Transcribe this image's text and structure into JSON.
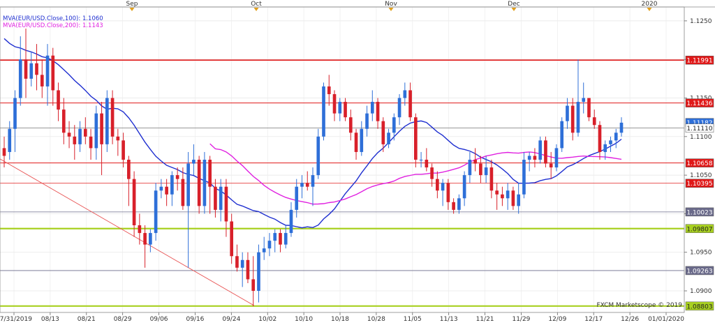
{
  "chart_data": {
    "type": "candlestick",
    "title": "",
    "instrument": "EUR/USD",
    "legend": [
      {
        "label": "MVA(EUR/USD.Close,100)",
        "value": "1.1060",
        "color": "#1f2fd0"
      },
      {
        "label": "MVA(EUR/USD.Close,200)",
        "value": "1.1143",
        "color": "#e020e0"
      }
    ],
    "credit": "FXCM Marketscope © 2019",
    "colors": {
      "up": "#2e6fd8",
      "down": "#d8202a"
    },
    "ylim": [
      1.0872,
      1.1268
    ],
    "y_ticks": [
      "1.1250",
      "1.1200",
      "1.1150",
      "1.1100",
      "1.1050",
      "1.1000",
      "1.0950",
      "1.0900"
    ],
    "x_dates": [
      "07/31/2019",
      "08/13",
      "08/21",
      "08/29",
      "09/06",
      "09/16",
      "09/24",
      "10/02",
      "10/10",
      "10/18",
      "10/28",
      "11/05",
      "11/13",
      "11/21",
      "11/29",
      "12/09",
      "12/17",
      "12/26",
      "01/01/2020"
    ],
    "months": [
      "Sep",
      "Oct",
      "Nov",
      "Dec",
      "2020"
    ],
    "levels": [
      {
        "price": 1.11991,
        "label": "1.11991",
        "color": "#e01818",
        "width": 1.6,
        "tag_bg": "#e01818",
        "tag_fg": "#ffffff"
      },
      {
        "price": 1.11436,
        "label": "1.11436",
        "color": "#e01818",
        "width": 1.0,
        "tag_bg": "#e01818",
        "tag_fg": "#ffffff"
      },
      {
        "price": 1.11182,
        "label": "1.11182",
        "color": "none",
        "width": 0,
        "tag_bg": "#2e6fd8",
        "tag_fg": "#ffffff"
      },
      {
        "price": 1.1111,
        "label": "1.11110",
        "color": "#777777",
        "width": 0.8,
        "tag_bg": "#ffffff",
        "tag_fg": "#222222"
      },
      {
        "price": 1.10658,
        "label": "1.10658",
        "color": "#e01818",
        "width": 1.0,
        "tag_bg": "#e01818",
        "tag_fg": "#ffffff"
      },
      {
        "price": 1.10395,
        "label": "1.10395",
        "color": "#e01818",
        "width": 0.8,
        "tag_bg": "#e01818",
        "tag_fg": "#ffffff"
      },
      {
        "price": 1.10023,
        "label": "1.10023",
        "color": "#6a6a8a",
        "width": 0.8,
        "tag_bg": "#6a6a8a",
        "tag_fg": "#ffffff"
      },
      {
        "price": 1.09807,
        "label": "1.09807",
        "color": "#a8d020",
        "width": 2.2,
        "tag_bg": "#a8d020",
        "tag_fg": "#222222"
      },
      {
        "price": 1.09263,
        "label": "1.09263",
        "color": "#6a6a8a",
        "width": 0.8,
        "tag_bg": "#6a6a8a",
        "tag_fg": "#ffffff"
      },
      {
        "price": 1.08803,
        "label": "1.08803",
        "color": "#a8d020",
        "width": 2.2,
        "tag_bg": "#a8d020",
        "tag_fg": "#222222"
      }
    ],
    "trendline": {
      "from": {
        "date": "07/31/2019",
        "price": 1.1071
      },
      "to": {
        "date": "10/01",
        "price": 1.0881
      },
      "color": "#e85050"
    },
    "candles": [
      [
        1.1085,
        1.11,
        1.106,
        1.1075
      ],
      [
        1.108,
        1.112,
        1.107,
        1.111
      ],
      [
        1.111,
        1.116,
        1.108,
        1.115
      ],
      [
        1.115,
        1.123,
        1.114,
        1.12
      ],
      [
        1.12,
        1.124,
        1.115,
        1.1175
      ],
      [
        1.1175,
        1.121,
        1.1165,
        1.1195
      ],
      [
        1.1195,
        1.122,
        1.116,
        1.118
      ],
      [
        1.118,
        1.12,
        1.115,
        1.1165
      ],
      [
        1.1165,
        1.122,
        1.114,
        1.1205
      ],
      [
        1.1205,
        1.1215,
        1.114,
        1.116
      ],
      [
        1.116,
        1.117,
        1.112,
        1.1135
      ],
      [
        1.1135,
        1.115,
        1.109,
        1.1105
      ],
      [
        1.1105,
        1.112,
        1.1085,
        1.11
      ],
      [
        1.11,
        1.1115,
        1.107,
        1.109
      ],
      [
        1.109,
        1.112,
        1.108,
        1.111
      ],
      [
        1.111,
        1.1125,
        1.109,
        1.11
      ],
      [
        1.11,
        1.111,
        1.107,
        1.1085
      ],
      [
        1.1085,
        1.114,
        1.107,
        1.113
      ],
      [
        1.113,
        1.1145,
        1.105,
        1.109
      ],
      [
        1.109,
        1.116,
        1.108,
        1.115
      ],
      [
        1.115,
        1.116,
        1.109,
        1.11
      ],
      [
        1.11,
        1.111,
        1.1075,
        1.1095
      ],
      [
        1.1095,
        1.1105,
        1.106,
        1.107
      ],
      [
        1.107,
        1.1075,
        1.101,
        1.1045
      ],
      [
        1.1045,
        1.1055,
        1.097,
        1.0985
      ],
      [
        1.0985,
        1.1,
        1.096,
        1.0975
      ],
      [
        1.0975,
        1.0985,
        1.093,
        1.096
      ],
      [
        1.096,
        1.098,
        1.095,
        1.0975
      ],
      [
        1.0975,
        1.104,
        1.0965,
        1.103
      ],
      [
        1.103,
        1.1045,
        1.102,
        1.1035
      ],
      [
        1.1035,
        1.1045,
        1.101,
        1.1025
      ],
      [
        1.1025,
        1.1055,
        1.101,
        1.105
      ],
      [
        1.105,
        1.106,
        1.103,
        1.1045
      ],
      [
        1.1045,
        1.106,
        1.1005,
        1.101
      ],
      [
        1.101,
        1.108,
        1.093,
        1.1065
      ],
      [
        1.1065,
        1.109,
        1.105,
        1.107
      ],
      [
        1.107,
        1.1075,
        1.1,
        1.101
      ],
      [
        1.101,
        1.108,
        1.1,
        1.107
      ],
      [
        1.107,
        1.1075,
        1.1,
        1.1035
      ],
      [
        1.1035,
        1.1045,
        1.0995,
        1.1005
      ],
      [
        1.1005,
        1.1045,
        1.099,
        1.1035
      ],
      [
        1.1035,
        1.1045,
        1.097,
        1.099
      ],
      [
        1.099,
        1.1,
        1.0935,
        1.0945
      ],
      [
        1.0945,
        1.096,
        1.0925,
        1.093
      ],
      [
        1.093,
        1.095,
        1.0905,
        1.094
      ],
      [
        1.094,
        1.095,
        1.091,
        1.0915
      ],
      [
        1.0915,
        1.0945,
        1.088,
        1.09
      ],
      [
        1.09,
        1.096,
        1.0885,
        1.095
      ],
      [
        1.095,
        1.097,
        1.094,
        1.0955
      ],
      [
        1.0955,
        1.0975,
        1.0945,
        1.0965
      ],
      [
        1.0965,
        1.098,
        1.095,
        1.0975
      ],
      [
        1.0975,
        1.098,
        1.095,
        1.096
      ],
      [
        1.096,
        1.0985,
        1.0955,
        1.0975
      ],
      [
        1.0975,
        1.1015,
        1.097,
        1.1005
      ],
      [
        1.1005,
        1.1045,
        1.0995,
        1.1035
      ],
      [
        1.1035,
        1.105,
        1.102,
        1.104
      ],
      [
        1.104,
        1.1055,
        1.103,
        1.1035
      ],
      [
        1.1035,
        1.106,
        1.101,
        1.105
      ],
      [
        1.105,
        1.111,
        1.1045,
        1.11
      ],
      [
        1.11,
        1.117,
        1.1095,
        1.1165
      ],
      [
        1.1165,
        1.118,
        1.114,
        1.1155
      ],
      [
        1.1155,
        1.116,
        1.112,
        1.113
      ],
      [
        1.113,
        1.115,
        1.112,
        1.1145
      ],
      [
        1.1145,
        1.115,
        1.112,
        1.1125
      ],
      [
        1.1125,
        1.1135,
        1.1095,
        1.1105
      ],
      [
        1.1105,
        1.111,
        1.107,
        1.108
      ],
      [
        1.108,
        1.112,
        1.1075,
        1.111
      ],
      [
        1.111,
        1.114,
        1.11,
        1.113
      ],
      [
        1.113,
        1.116,
        1.112,
        1.1145
      ],
      [
        1.1145,
        1.115,
        1.111,
        1.112
      ],
      [
        1.112,
        1.1125,
        1.108,
        1.109
      ],
      [
        1.109,
        1.111,
        1.1085,
        1.1105
      ],
      [
        1.1105,
        1.113,
        1.1095,
        1.1125
      ],
      [
        1.1125,
        1.1155,
        1.1115,
        1.115
      ],
      [
        1.115,
        1.117,
        1.114,
        1.116
      ],
      [
        1.116,
        1.117,
        1.112,
        1.1125
      ],
      [
        1.1125,
        1.113,
        1.106,
        1.107
      ],
      [
        1.107,
        1.108,
        1.106,
        1.107
      ],
      [
        1.107,
        1.1085,
        1.1055,
        1.106
      ],
      [
        1.106,
        1.1065,
        1.1035,
        1.1045
      ],
      [
        1.1045,
        1.1055,
        1.102,
        1.103
      ],
      [
        1.103,
        1.1045,
        1.101,
        1.104
      ],
      [
        1.104,
        1.1045,
        1.1005,
        1.1015
      ],
      [
        1.1015,
        1.102,
        1.1,
        1.1005
      ],
      [
        1.1005,
        1.1025,
        1.1,
        1.102
      ],
      [
        1.102,
        1.1055,
        1.101,
        1.105
      ],
      [
        1.105,
        1.108,
        1.104,
        1.107
      ],
      [
        1.107,
        1.1085,
        1.1055,
        1.1065
      ],
      [
        1.1065,
        1.1075,
        1.104,
        1.105
      ],
      [
        1.105,
        1.1075,
        1.104,
        1.106
      ],
      [
        1.106,
        1.107,
        1.102,
        1.103
      ],
      [
        1.103,
        1.104,
        1.1005,
        1.1025
      ],
      [
        1.1025,
        1.1035,
        1.101,
        1.102
      ],
      [
        1.102,
        1.104,
        1.1005,
        1.103
      ],
      [
        1.103,
        1.1035,
        1.1005,
        1.101
      ],
      [
        1.101,
        1.104,
        1.1,
        1.1025
      ],
      [
        1.1025,
        1.108,
        1.102,
        1.107
      ],
      [
        1.107,
        1.108,
        1.1055,
        1.1075
      ],
      [
        1.1075,
        1.1085,
        1.106,
        1.107
      ],
      [
        1.107,
        1.11,
        1.1065,
        1.1095
      ],
      [
        1.1095,
        1.11,
        1.106,
        1.1065
      ],
      [
        1.1065,
        1.108,
        1.1045,
        1.106
      ],
      [
        1.106,
        1.109,
        1.1055,
        1.1085
      ],
      [
        1.1085,
        1.1125,
        1.108,
        1.112
      ],
      [
        1.112,
        1.115,
        1.111,
        1.114
      ],
      [
        1.114,
        1.115,
        1.1095,
        1.1105
      ],
      [
        1.1105,
        1.12,
        1.11,
        1.1145
      ],
      [
        1.1145,
        1.117,
        1.113,
        1.115
      ],
      [
        1.115,
        1.115,
        1.112,
        1.1125
      ],
      [
        1.1125,
        1.1135,
        1.111,
        1.1115
      ],
      [
        1.1115,
        1.112,
        1.107,
        1.108
      ],
      [
        1.108,
        1.1095,
        1.107,
        1.109
      ],
      [
        1.109,
        1.11,
        1.108,
        1.1095
      ],
      [
        1.1095,
        1.111,
        1.1085,
        1.1105
      ],
      [
        1.1105,
        1.1125,
        1.11,
        1.1118
      ]
    ]
  }
}
